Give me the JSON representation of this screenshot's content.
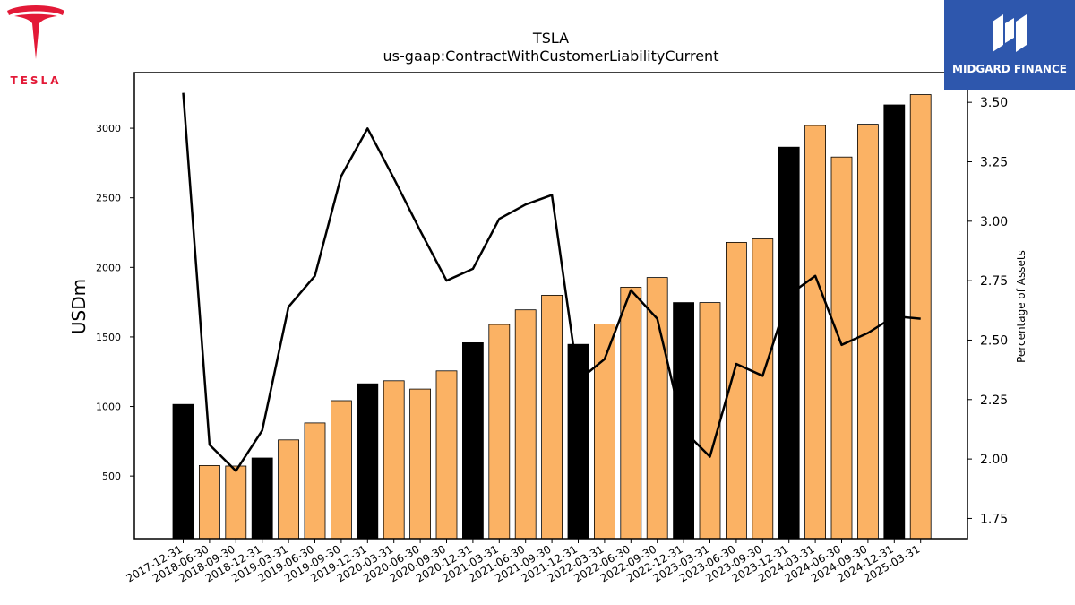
{
  "logos": {
    "left_text": "TESLA",
    "right_text": "MIDGARD FINANCE",
    "left_color": "#e31937",
    "right_bg": "#2e57ad"
  },
  "chart_data": {
    "type": "bar",
    "title": "TSLA",
    "subtitle": "us-gaap:ContractWithCustomerLiabilityCurrent",
    "ylabel": "USDm",
    "y2label": "Percentage of Assets",
    "ylim": [
      50,
      3400
    ],
    "y2lim": [
      1.665,
      3.625
    ],
    "yticks": [
      500,
      1000,
      1500,
      2000,
      2500,
      3000
    ],
    "y2ticks": [
      "1.75",
      "2.00",
      "2.25",
      "2.50",
      "2.75",
      "3.00",
      "3.25",
      "3.50"
    ],
    "categories": [
      "2017-12-31",
      "2018-06-30",
      "2018-09-30",
      "2018-12-31",
      "2019-03-31",
      "2019-06-30",
      "2019-09-30",
      "2019-12-31",
      "2020-03-31",
      "2020-06-30",
      "2020-09-30",
      "2020-12-31",
      "2021-03-31",
      "2021-06-30",
      "2021-09-30",
      "2021-12-31",
      "2022-03-31",
      "2022-06-30",
      "2022-09-30",
      "2022-12-31",
      "2023-03-31",
      "2023-06-30",
      "2023-09-30",
      "2023-12-31",
      "2024-03-31",
      "2024-06-30",
      "2024-09-30",
      "2024-12-31",
      "2025-03-31"
    ],
    "series": [
      {
        "kind": "bar",
        "values": [
          1015,
          576,
          572,
          630,
          760,
          882,
          1042,
          1163,
          1185,
          1125,
          1256,
          1458,
          1590,
          1695,
          1800,
          1447,
          1593,
          1858,
          1927,
          1747,
          1747,
          2180,
          2205,
          2864,
          3020,
          2793,
          3029,
          3168,
          3242
        ],
        "annual_flags": [
          1,
          0,
          0,
          1,
          0,
          0,
          0,
          1,
          0,
          0,
          0,
          1,
          0,
          0,
          0,
          1,
          0,
          0,
          0,
          1,
          0,
          0,
          0,
          1,
          0,
          0,
          0,
          1,
          0
        ],
        "annual_color": "#000000",
        "quarter_color": "#fbb264"
      },
      {
        "kind": "line",
        "axis": "right",
        "color": "#000000",
        "values": [
          3.54,
          2.06,
          1.95,
          2.12,
          2.64,
          2.77,
          3.19,
          3.39,
          3.18,
          2.96,
          2.75,
          2.8,
          3.01,
          3.07,
          3.11,
          2.33,
          2.42,
          2.71,
          2.59,
          2.12,
          2.01,
          2.4,
          2.35,
          2.69,
          2.77,
          2.48,
          2.53,
          2.6,
          2.59
        ]
      }
    ],
    "grid": false,
    "legend": "none"
  }
}
